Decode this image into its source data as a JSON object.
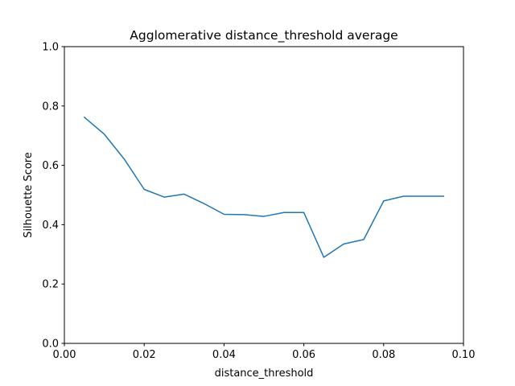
{
  "chart_data": {
    "type": "line",
    "title": "Agglomerative distance_threshold average",
    "xlabel": "distance_threshold",
    "ylabel": "Silhouette Score",
    "xlim": [
      0.0,
      0.1
    ],
    "ylim": [
      0.0,
      1.0
    ],
    "xticks": [
      "0.00",
      "0.02",
      "0.04",
      "0.06",
      "0.08",
      "0.10"
    ],
    "yticks": [
      "0.0",
      "0.2",
      "0.4",
      "0.6",
      "0.8",
      "1.0"
    ],
    "grid": false,
    "series": [
      {
        "color": "#1f77b4",
        "x": [
          0.005,
          0.01,
          0.015,
          0.02,
          0.025,
          0.03,
          0.035,
          0.04,
          0.045,
          0.05,
          0.055,
          0.06,
          0.065,
          0.07,
          0.075,
          0.08,
          0.085,
          0.09,
          0.095
        ],
        "y": [
          0.762,
          0.705,
          0.621,
          0.519,
          0.493,
          0.503,
          0.471,
          0.435,
          0.434,
          0.428,
          0.441,
          0.441,
          0.29,
          0.335,
          0.35,
          0.48,
          0.496,
          0.496,
          0.496
        ]
      }
    ]
  }
}
